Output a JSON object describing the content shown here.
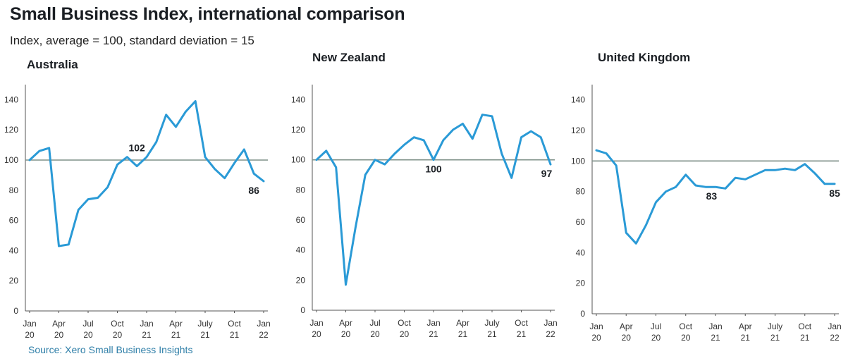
{
  "page": {
    "title": "Small Business Index, international comparison",
    "subtitle": "Index, average = 100, standard deviation = 15",
    "source": "Source: Xero Small Business Insights"
  },
  "colors": {
    "line": "#2a9ad6",
    "reference": "#7f9189",
    "axis": "#555555"
  },
  "chart_data": [
    {
      "type": "line",
      "title": "Australia",
      "ylim": [
        0,
        150
      ],
      "yticks": [
        0,
        20,
        40,
        60,
        80,
        100,
        120,
        140
      ],
      "reference_line": 100,
      "xlim": [
        0,
        24
      ],
      "xticks": [
        {
          "pos": 0,
          "label": [
            "Jan",
            "20"
          ]
        },
        {
          "pos": 3,
          "label": [
            "Apr",
            "20"
          ]
        },
        {
          "pos": 6,
          "label": [
            "Jul",
            "20"
          ]
        },
        {
          "pos": 9,
          "label": [
            "Oct",
            "20"
          ]
        },
        {
          "pos": 12,
          "label": [
            "Jan",
            "21"
          ]
        },
        {
          "pos": 15,
          "label": [
            "Apr",
            "21"
          ]
        },
        {
          "pos": 18,
          "label": [
            "July",
            "21"
          ]
        },
        {
          "pos": 21,
          "label": [
            "Oct",
            "21"
          ]
        },
        {
          "pos": 24,
          "label": [
            "Jan",
            "22"
          ]
        }
      ],
      "series": [
        {
          "x": [
            0,
            1,
            2,
            3,
            4,
            5,
            6,
            7,
            8,
            9,
            10,
            11,
            12,
            13,
            14,
            15,
            16,
            17,
            18,
            19,
            20,
            21,
            22,
            23,
            24
          ],
          "values": [
            100,
            106,
            108,
            43,
            44,
            67,
            74,
            75,
            82,
            97,
            102,
            96,
            102,
            112,
            130,
            122,
            132,
            139,
            102,
            94,
            88,
            98,
            107,
            91,
            86
          ]
        }
      ],
      "annotations": [
        {
          "x": 11,
          "y": 102,
          "text": "102"
        },
        {
          "x": 23,
          "y": 86,
          "text": "86"
        }
      ]
    },
    {
      "type": "line",
      "title": "New Zealand",
      "ylim": [
        0,
        150
      ],
      "yticks": [
        0,
        20,
        40,
        60,
        80,
        100,
        120,
        140
      ],
      "reference_line": 100,
      "xlim": [
        0,
        24
      ],
      "xticks": [
        {
          "pos": 0,
          "label": [
            "Jan",
            "20"
          ]
        },
        {
          "pos": 3,
          "label": [
            "Apr",
            "20"
          ]
        },
        {
          "pos": 6,
          "label": [
            "Jul",
            "20"
          ]
        },
        {
          "pos": 9,
          "label": [
            "Oct",
            "20"
          ]
        },
        {
          "pos": 12,
          "label": [
            "Jan",
            "21"
          ]
        },
        {
          "pos": 15,
          "label": [
            "Apr",
            "21"
          ]
        },
        {
          "pos": 18,
          "label": [
            "July",
            "21"
          ]
        },
        {
          "pos": 21,
          "label": [
            "Oct",
            "21"
          ]
        },
        {
          "pos": 24,
          "label": [
            "Jan",
            "22"
          ]
        }
      ],
      "series": [
        {
          "x": [
            0,
            1,
            2,
            3,
            4,
            5,
            6,
            7,
            8,
            9,
            10,
            11,
            12,
            13,
            14,
            15,
            16,
            17,
            18,
            19,
            20,
            21,
            22,
            23,
            24
          ],
          "values": [
            100,
            106,
            95,
            17,
            55,
            90,
            100,
            97,
            104,
            110,
            115,
            113,
            100,
            113,
            120,
            124,
            114,
            130,
            129,
            104,
            88,
            115,
            119,
            115,
            97
          ]
        }
      ],
      "annotations": [
        {
          "x": 12,
          "y": 100,
          "text": "100"
        },
        {
          "x": 23.6,
          "y": 97,
          "text": "97"
        }
      ]
    },
    {
      "type": "line",
      "title": "United Kingdom",
      "ylim": [
        0,
        150
      ],
      "yticks": [
        0,
        20,
        40,
        60,
        80,
        100,
        120,
        140
      ],
      "reference_line": 100,
      "xlim": [
        0,
        24
      ],
      "xticks": [
        {
          "pos": 0,
          "label": [
            "Jan",
            "20"
          ]
        },
        {
          "pos": 3,
          "label": [
            "Apr",
            "20"
          ]
        },
        {
          "pos": 6,
          "label": [
            "Jul",
            "20"
          ]
        },
        {
          "pos": 9,
          "label": [
            "Oct",
            "20"
          ]
        },
        {
          "pos": 12,
          "label": [
            "Jan",
            "21"
          ]
        },
        {
          "pos": 15,
          "label": [
            "Apr",
            "21"
          ]
        },
        {
          "pos": 18,
          "label": [
            "July",
            "21"
          ]
        },
        {
          "pos": 21,
          "label": [
            "Oct",
            "21"
          ]
        },
        {
          "pos": 24,
          "label": [
            "Jan",
            "22"
          ]
        }
      ],
      "series": [
        {
          "x": [
            0,
            1,
            2,
            3,
            4,
            5,
            6,
            7,
            8,
            9,
            10,
            11,
            12,
            13,
            14,
            15,
            16,
            17,
            18,
            19,
            20,
            21,
            22,
            23,
            24
          ],
          "values": [
            107,
            105,
            97,
            53,
            46,
            58,
            73,
            80,
            83,
            91,
            84,
            83,
            83,
            82,
            89,
            88,
            91,
            94,
            94,
            95,
            94,
            98,
            92,
            85,
            85
          ]
        }
      ],
      "annotations": [
        {
          "x": 11.6,
          "y": 83,
          "text": "83"
        },
        {
          "x": 24,
          "y": 85,
          "text": "85"
        }
      ]
    }
  ]
}
